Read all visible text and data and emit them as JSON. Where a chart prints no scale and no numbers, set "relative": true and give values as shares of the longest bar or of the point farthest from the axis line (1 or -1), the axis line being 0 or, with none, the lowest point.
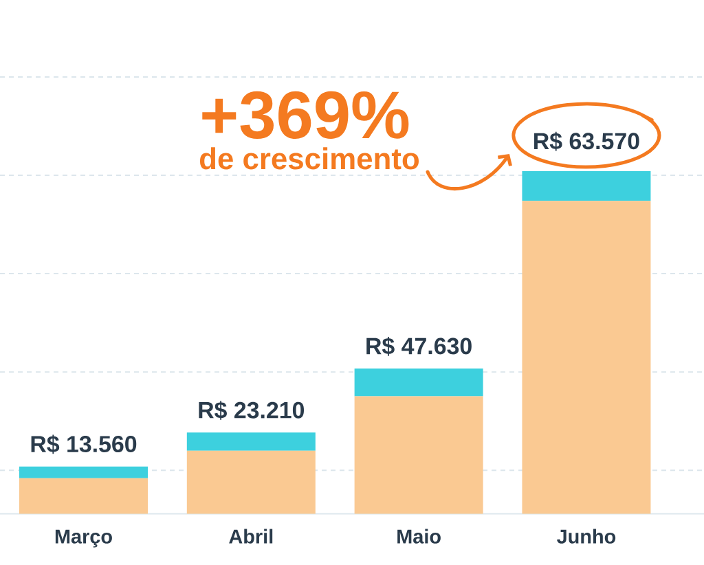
{
  "chart_data": {
    "type": "bar",
    "stacked": true,
    "relative": true,
    "categories": [
      "Março",
      "Abril",
      "Maio",
      "Junho"
    ],
    "series": [
      {
        "color": "#FAC992",
        "values": [
          0.104,
          0.184,
          0.343,
          0.913
        ]
      },
      {
        "color": "#3DD0DE",
        "values": [
          0.034,
          0.053,
          0.081,
          0.087
        ]
      }
    ],
    "totals": [
      "R$ 13.560",
      "R$ 23.210",
      "R$ 47.630",
      "R$ 63.570"
    ],
    "annotations": [
      "+369%",
      "de crescimento"
    ],
    "grid": "y"
  }
}
